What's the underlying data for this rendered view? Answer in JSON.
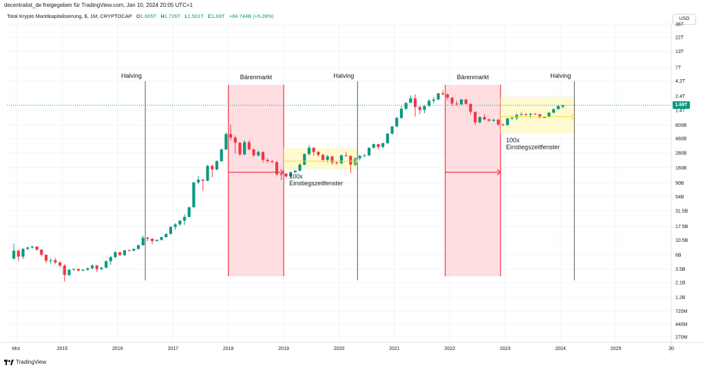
{
  "header": {
    "published_by": "decentralist_de freigegeben für TradingView.com, Jan 10, 2024 20:05 UTC+1",
    "symbol_title": "Total Krypto Marktkapitalisierung, $, 1M, CRYPTOCAP",
    "ohlc": {
      "o_label": "O",
      "o": "1.605T",
      "h_label": "H",
      "h": "1.726T",
      "l_label": "L",
      "l": "1.501T",
      "c_label": "C",
      "c": "1.69T",
      "change": "+84.744B (+5.28%)"
    }
  },
  "currency_button": "USD",
  "footer": {
    "logo_text": "TradingView",
    "logo_icon": "tradingview-logo-icon"
  },
  "colors": {
    "up": "#089981",
    "down": "#f23645",
    "bear_fill": "#ffcdd2",
    "window_fill": "#fff9c4",
    "grid": "#f0f3fa",
    "vline": "#555555",
    "arrow_up": "#f5e342",
    "arrow_down": "#f23645"
  },
  "chart_data": {
    "type": "candlestick",
    "interval": "1M",
    "y_scale": "log",
    "ylim": [
      220000000,
      38000000000000
    ],
    "xlim": [
      "2014-01",
      "2026-01"
    ],
    "grid": true,
    "last_price_label": "1.69T",
    "last_price": 1690000000000,
    "y_ticks": [
      {
        "label": "36T",
        "v": 36000000000000
      },
      {
        "label": "22T",
        "v": 22000000000000
      },
      {
        "label": "13T",
        "v": 13000000000000
      },
      {
        "label": "7T",
        "v": 7000000000000
      },
      {
        "label": "4.2T",
        "v": 4200000000000
      },
      {
        "label": "2.4T",
        "v": 2400000000000
      },
      {
        "label": "1.4T",
        "v": 1400000000000
      },
      {
        "label": "800B",
        "v": 800000000000
      },
      {
        "label": "480B",
        "v": 480000000000
      },
      {
        "label": "280B",
        "v": 280000000000
      },
      {
        "label": "160B",
        "v": 160000000000
      },
      {
        "label": "90B",
        "v": 90000000000
      },
      {
        "label": "54B",
        "v": 54000000000
      },
      {
        "label": "31.5B",
        "v": 31500000000
      },
      {
        "label": "17.5B",
        "v": 17500000000
      },
      {
        "label": "10.5B",
        "v": 10500000000
      },
      {
        "label": "6B",
        "v": 6000000000
      },
      {
        "label": "3.5B",
        "v": 3500000000
      },
      {
        "label": "2.1B",
        "v": 2100000000
      },
      {
        "label": "1.2B",
        "v": 1200000000
      },
      {
        "label": "720M",
        "v": 720000000
      },
      {
        "label": "440M",
        "v": 440000000
      },
      {
        "label": "270M",
        "v": 270000000
      }
    ],
    "x_ticks": [
      {
        "label": "Mrz",
        "t": "2014-03"
      },
      {
        "label": "2015",
        "t": "2015-01"
      },
      {
        "label": "2016",
        "t": "2016-01"
      },
      {
        "label": "2017",
        "t": "2017-01"
      },
      {
        "label": "2018",
        "t": "2018-01"
      },
      {
        "label": "2019",
        "t": "2019-01"
      },
      {
        "label": "2020",
        "t": "2020-01"
      },
      {
        "label": "2021",
        "t": "2021-01"
      },
      {
        "label": "2022",
        "t": "2022-01"
      },
      {
        "label": "2023",
        "t": "2023-01"
      },
      {
        "label": "2024",
        "t": "2024-01"
      },
      {
        "label": "2025",
        "t": "2025-01"
      },
      {
        "label": "20",
        "t": "2026-01"
      }
    ],
    "candles": [
      [
        "2014-02",
        5.2,
        9.2,
        5.0,
        7.0
      ],
      [
        "2014-03",
        7.0,
        7.4,
        4.7,
        5.6
      ],
      [
        "2014-04",
        5.6,
        7.7,
        5.1,
        7.5
      ],
      [
        "2014-05",
        7.5,
        8.2,
        7.1,
        7.9
      ],
      [
        "2014-06",
        7.9,
        8.4,
        7.6,
        8.2
      ],
      [
        "2014-07",
        8.2,
        8.3,
        7.0,
        7.3
      ],
      [
        "2014-08",
        7.3,
        7.4,
        5.6,
        6.0
      ],
      [
        "2014-09",
        6.0,
        6.1,
        4.4,
        4.8
      ],
      [
        "2014-10",
        4.8,
        5.2,
        4.3,
        4.9
      ],
      [
        "2014-11",
        4.9,
        5.3,
        4.2,
        4.5
      ],
      [
        "2014-12",
        4.5,
        4.7,
        3.8,
        4.0
      ],
      [
        "2015-01",
        4.0,
        4.2,
        2.2,
        2.8
      ],
      [
        "2015-02",
        2.8,
        3.5,
        2.7,
        3.4
      ],
      [
        "2015-03",
        3.4,
        3.6,
        3.3,
        3.5
      ],
      [
        "2015-04",
        3.5,
        3.6,
        3.2,
        3.3
      ],
      [
        "2015-05",
        3.3,
        3.5,
        3.2,
        3.4
      ],
      [
        "2015-06",
        3.4,
        3.7,
        3.3,
        3.6
      ],
      [
        "2015-07",
        3.6,
        4.2,
        3.5,
        4.0
      ],
      [
        "2015-08",
        4.0,
        4.1,
        3.2,
        3.5
      ],
      [
        "2015-09",
        3.5,
        3.8,
        3.4,
        3.7
      ],
      [
        "2015-10",
        3.7,
        4.9,
        3.6,
        4.7
      ],
      [
        "2015-11",
        4.7,
        5.8,
        4.1,
        5.5
      ],
      [
        "2015-12",
        5.5,
        6.9,
        5.3,
        6.6
      ],
      [
        "2016-01",
        6.6,
        6.7,
        5.8,
        5.9
      ],
      [
        "2016-02",
        5.9,
        7.2,
        5.8,
        7.1
      ],
      [
        "2016-03",
        7.1,
        7.4,
        6.8,
        7.0
      ],
      [
        "2016-04",
        7.0,
        7.6,
        6.9,
        7.5
      ],
      [
        "2016-05",
        7.5,
        8.8,
        7.3,
        8.6
      ],
      [
        "2016-06",
        8.6,
        12.4,
        8.5,
        11.4
      ],
      [
        "2016-07",
        11.4,
        11.9,
        10.1,
        11.0
      ],
      [
        "2016-08",
        11.0,
        11.2,
        8.9,
        10.1
      ],
      [
        "2016-09",
        10.1,
        10.7,
        9.9,
        10.5
      ],
      [
        "2016-10",
        10.5,
        11.8,
        10.3,
        11.7
      ],
      [
        "2016-11",
        11.7,
        13.4,
        11.4,
        13.2
      ],
      [
        "2016-12",
        13.2,
        17.5,
        13.0,
        17.2
      ],
      [
        "2017-01",
        17.2,
        19.8,
        15.4,
        18.9
      ],
      [
        "2017-02",
        18.9,
        22.0,
        18.1,
        21.8
      ],
      [
        "2017-03",
        21.8,
        27.5,
        18.5,
        25.0
      ],
      [
        "2017-04",
        25.0,
        37.0,
        24.8,
        36.0
      ],
      [
        "2017-05",
        36.0,
        94.0,
        36.0,
        92.0
      ],
      [
        "2017-06",
        92.0,
        118.0,
        86.0,
        102.0
      ],
      [
        "2017-07",
        102.0,
        104.0,
        66.0,
        98.0
      ],
      [
        "2017-08",
        98.0,
        178.0,
        96.0,
        172.0
      ],
      [
        "2017-09",
        172.0,
        180.0,
        112.0,
        150.0
      ],
      [
        "2017-10",
        150.0,
        212.0,
        145.0,
        205.0
      ],
      [
        "2017-11",
        205.0,
        330.0,
        200.0,
        320.0
      ],
      [
        "2017-12",
        320.0,
        610.0,
        310.0,
        570.0
      ],
      [
        "2018-01",
        570.0,
        820.0,
        450.0,
        500.0
      ],
      [
        "2018-02",
        500.0,
        540.0,
        270.0,
        410.0
      ],
      [
        "2018-03",
        410.0,
        420.0,
        250.0,
        265.0
      ],
      [
        "2018-04",
        265.0,
        450.0,
        255.0,
        420.0
      ],
      [
        "2018-05",
        420.0,
        450.0,
        310.0,
        320.0
      ],
      [
        "2018-06",
        320.0,
        330.0,
        240.0,
        255.0
      ],
      [
        "2018-07",
        255.0,
        305.0,
        245.0,
        290.0
      ],
      [
        "2018-08",
        290.0,
        295.0,
        195.0,
        215.0
      ],
      [
        "2018-09",
        215.0,
        230.0,
        190.0,
        205.0
      ],
      [
        "2018-10",
        205.0,
        215.0,
        190.0,
        198.0
      ],
      [
        "2018-11",
        198.0,
        205.0,
        115.0,
        125.0
      ],
      [
        "2018-12",
        125.0,
        135.0,
        100.0,
        128.0
      ],
      [
        "2019-01",
        128.0,
        132.0,
        110.0,
        115.0
      ],
      [
        "2019-02",
        115.0,
        140.0,
        112.0,
        135.0
      ],
      [
        "2019-03",
        135.0,
        145.0,
        132.0,
        143.0
      ],
      [
        "2019-04",
        143.0,
        190.0,
        140.0,
        180.0
      ],
      [
        "2019-05",
        180.0,
        275.0,
        175.0,
        268.0
      ],
      [
        "2019-06",
        268.0,
        380.0,
        255.0,
        340.0
      ],
      [
        "2019-07",
        340.0,
        345.0,
        250.0,
        290.0
      ],
      [
        "2019-08",
        290.0,
        300.0,
        245.0,
        260.0
      ],
      [
        "2019-09",
        260.0,
        270.0,
        200.0,
        215.0
      ],
      [
        "2019-10",
        215.0,
        260.0,
        195.0,
        245.0
      ],
      [
        "2019-11",
        245.0,
        250.0,
        180.0,
        195.0
      ],
      [
        "2019-12",
        195.0,
        205.0,
        180.0,
        190.0
      ],
      [
        "2020-01",
        190.0,
        265.0,
        185.0,
        255.0
      ],
      [
        "2020-02",
        255.0,
        290.0,
        245.0,
        250.0
      ],
      [
        "2020-03",
        250.0,
        255.0,
        130.0,
        180.0
      ],
      [
        "2020-04",
        180.0,
        240.0,
        170.0,
        230.0
      ],
      [
        "2020-05",
        230.0,
        260.0,
        210.0,
        250.0
      ],
      [
        "2020-06",
        250.0,
        270.0,
        240.0,
        255.0
      ],
      [
        "2020-07",
        255.0,
        345.0,
        250.0,
        340.0
      ],
      [
        "2020-08",
        340.0,
        400.0,
        330.0,
        390.0
      ],
      [
        "2020-09",
        390.0,
        395.0,
        320.0,
        350.0
      ],
      [
        "2020-10",
        350.0,
        410.0,
        340.0,
        405.0
      ],
      [
        "2020-11",
        405.0,
        590.0,
        395.0,
        580.0
      ],
      [
        "2020-12",
        580.0,
        770.0,
        560.0,
        760.0
      ],
      [
        "2021-01",
        760.0,
        1090.0,
        740.0,
        1050.0
      ],
      [
        "2021-02",
        1050.0,
        1650.0,
        1000.0,
        1480.0
      ],
      [
        "2021-03",
        1480.0,
        1880.0,
        1420.0,
        1850.0
      ],
      [
        "2021-04",
        1850.0,
        2450.0,
        1850.0,
        2200.0
      ],
      [
        "2021-05",
        2200.0,
        2550.0,
        1100.0,
        1580.0
      ],
      [
        "2021-06",
        1580.0,
        1660.0,
        1200.0,
        1420.0
      ],
      [
        "2021-07",
        1420.0,
        1660.0,
        1250.0,
        1650.0
      ],
      [
        "2021-08",
        1650.0,
        2150.0,
        1620.0,
        2000.0
      ],
      [
        "2021-09",
        2000.0,
        2300.0,
        1800.0,
        2100.0
      ],
      [
        "2021-10",
        2100.0,
        2700.0,
        2050.0,
        2650.0
      ],
      [
        "2021-11",
        2650.0,
        3000.0,
        2450.0,
        2550.0
      ],
      [
        "2021-12",
        2550.0,
        2650.0,
        2050.0,
        2250.0
      ],
      [
        "2022-01",
        2250.0,
        2300.0,
        1650.0,
        1800.0
      ],
      [
        "2022-02",
        1800.0,
        2000.0,
        1650.0,
        1750.0
      ],
      [
        "2022-03",
        1750.0,
        2150.0,
        1700.0,
        2100.0
      ],
      [
        "2022-04",
        2100.0,
        2150.0,
        1750.0,
        1780.0
      ],
      [
        "2022-05",
        1780.0,
        1800.0,
        1200.0,
        1320.0
      ],
      [
        "2022-06",
        1320.0,
        1330.0,
        800.0,
        890.0
      ],
      [
        "2022-07",
        890.0,
        1120.0,
        850.0,
        1080.0
      ],
      [
        "2022-08",
        1080.0,
        1220.0,
        960.0,
        990.0
      ],
      [
        "2022-09",
        990.0,
        1020.0,
        910.0,
        940.0
      ],
      [
        "2022-10",
        940.0,
        1010.0,
        910.0,
        980.0
      ],
      [
        "2022-11",
        980.0,
        1010.0,
        770.0,
        820.0
      ],
      [
        "2022-12",
        820.0,
        850.0,
        770.0,
        800.0
      ],
      [
        "2023-01",
        800.0,
        1050.0,
        790.0,
        1030.0
      ],
      [
        "2023-02",
        1030.0,
        1120.0,
        980.0,
        1050.0
      ],
      [
        "2023-03",
        1050.0,
        1220.0,
        960.0,
        1180.0
      ],
      [
        "2023-04",
        1180.0,
        1300.0,
        1150.0,
        1200.0
      ],
      [
        "2023-05",
        1200.0,
        1250.0,
        1140.0,
        1180.0
      ],
      [
        "2023-06",
        1180.0,
        1260.0,
        1050.0,
        1220.0
      ],
      [
        "2023-07",
        1220.0,
        1260.0,
        1180.0,
        1200.0
      ],
      [
        "2023-08",
        1200.0,
        1220.0,
        1030.0,
        1070.0
      ],
      [
        "2023-09",
        1070.0,
        1110.0,
        1040.0,
        1080.0
      ],
      [
        "2023-10",
        1080.0,
        1290.0,
        1070.0,
        1280.0
      ],
      [
        "2023-11",
        1280.0,
        1480.0,
        1250.0,
        1460.0
      ],
      [
        "2023-12",
        1460.0,
        1710.0,
        1440.0,
        1640.0
      ],
      [
        "2024-01",
        1605.0,
        1726.0,
        1501.0,
        1690.0
      ]
    ],
    "candle_units": "billion USD [month, open, high, low, close]",
    "annotations": {
      "halvings": [
        {
          "label": "Halving",
          "t": "2016-07"
        },
        {
          "label": "Halving",
          "t": "2020-05"
        },
        {
          "label": "Halving",
          "t": "2024-04"
        }
      ],
      "bear_markets": [
        {
          "label": "Bärenmarkt",
          "start": "2018-01",
          "end": "2019-01"
        },
        {
          "label": "Bärenmarkt",
          "start": "2021-12",
          "end": "2022-12"
        }
      ],
      "entry_windows": [
        {
          "label_line1": "100x",
          "label_line2": "Einstiegszeitfenster",
          "start": "2019-01",
          "end": "2020-05",
          "y_top": 340,
          "y_bottom": 150,
          "arrow_y": 205
        },
        {
          "label_line1": "100x",
          "label_line2": "Einstiegszeitfenster",
          "start": "2022-12",
          "end": "2024-04",
          "y_top": 2300,
          "y_bottom": 590,
          "arrow_y": 1100
        }
      ],
      "bear_arrows": [
        {
          "start": "2018-01",
          "end": "2019-01",
          "y": 135
        },
        {
          "start": "2021-12",
          "end": "2022-12",
          "y": 135
        }
      ],
      "units": "billion USD"
    }
  }
}
